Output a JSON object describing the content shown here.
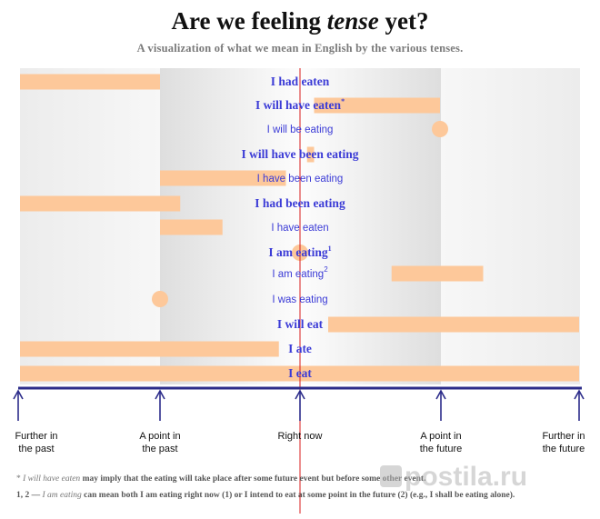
{
  "header": {
    "title_pre": "Are we feeling ",
    "title_em": "tense",
    "title_post": " yet?",
    "subtitle": "A visualization of what we mean in English by the various  tenses."
  },
  "timeline": {
    "points": [
      {
        "key": "fp",
        "line1": "Further in",
        "line2": "the past"
      },
      {
        "key": "pp",
        "line1": "A point in",
        "line2": "the past"
      },
      {
        "key": "now",
        "line1": "Right now",
        "line2": ""
      },
      {
        "key": "pf",
        "line1": "A point in",
        "line2": "the future"
      },
      {
        "key": "ff",
        "line1": "Further in",
        "line2": "the future"
      }
    ]
  },
  "rows": [
    {
      "label": "I had eaten",
      "sup": "",
      "style": "serif",
      "bars": [
        {
          "from": "fp",
          "to": "pp"
        }
      ]
    },
    {
      "label": "I will have eaten",
      "sup": "*",
      "style": "serif",
      "bars": [
        {
          "from": 0.1,
          "to": "pf"
        }
      ]
    },
    {
      "label": "I will be eating",
      "sup": "",
      "style": "sans",
      "bars": [],
      "dot": "pf"
    },
    {
      "label": "I will have been eating",
      "sup": "",
      "style": "serif",
      "bars": [
        {
          "from": 0.05,
          "to": 0.1
        }
      ]
    },
    {
      "label": "I have been eating",
      "sup": "",
      "style": "sans",
      "bars": [
        {
          "from": "pp",
          "to": -0.1
        }
      ]
    },
    {
      "label": "I had been eating",
      "sup": "",
      "style": "serif",
      "bars": [
        {
          "from": "fp",
          "to": -0.85
        }
      ]
    },
    {
      "label": "I have eaten",
      "sup": "",
      "style": "sans",
      "bars": [
        {
          "from": "pp",
          "to": -0.55
        }
      ]
    },
    {
      "label": "I am eating",
      "sup": "1",
      "style": "serif",
      "bars": [],
      "dot": "now"
    },
    {
      "label": "I am eating",
      "sup": "2",
      "style": "sans",
      "bars": [
        {
          "from": 0.65,
          "to": 1.3
        }
      ]
    },
    {
      "label": "I was eating",
      "sup": "",
      "style": "sans",
      "bars": [],
      "dot": "pp"
    },
    {
      "label": "I will eat",
      "sup": "",
      "style": "serif",
      "bars": [
        {
          "from": 0.2,
          "to": "ff"
        }
      ]
    },
    {
      "label": "I ate",
      "sup": "",
      "style": "serif",
      "bars": [
        {
          "from": "fp",
          "to": -0.15
        }
      ]
    },
    {
      "label": "I eat",
      "sup": "",
      "style": "serif",
      "bars": [
        {
          "from": "fp",
          "to": "ff"
        }
      ]
    }
  ],
  "footnotes": {
    "n1_sym": "*",
    "n1_em": "I will have eaten",
    "n1_text": " may imply that the eating will take place after some future event but before some other event.",
    "n2_sym": "1, 2 —",
    "n2_em": "I am eating",
    "n2_text": " can mean both I am eating right now (1) or I intend to eat at some point in the future (2) (e.g., I shall be eating alone)."
  },
  "watermark": "postila.ru",
  "colors": {
    "bar": "#fdc89a",
    "label": "#3b3bd6",
    "now_line": "#d81b1b",
    "axis": "#2c2c8a",
    "shade": "#efefef"
  }
}
